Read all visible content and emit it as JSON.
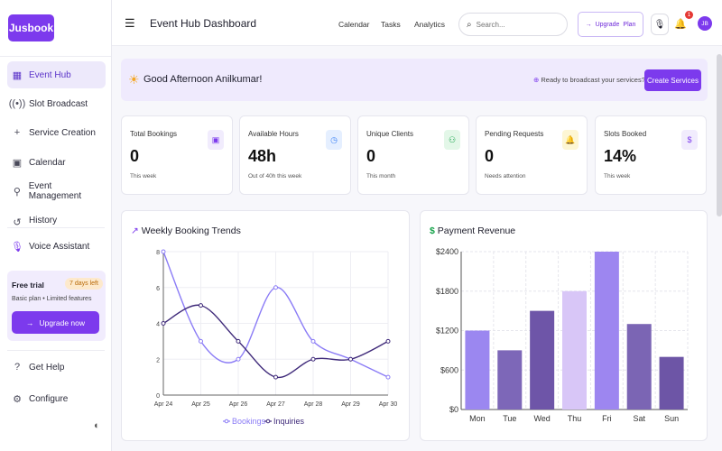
{
  "brand": {
    "name": "Jusbook"
  },
  "sidebar": {
    "items": [
      {
        "label": "Event Hub",
        "icon": "grid-icon"
      },
      {
        "label": "Slot Broadcast",
        "icon": "broadcast-icon"
      },
      {
        "label": "Service Creation",
        "icon": "plus-icon"
      },
      {
        "label": "Calendar",
        "icon": "calendar-icon"
      },
      {
        "label": "Event Management",
        "icon": "user-icon"
      },
      {
        "label": "History",
        "icon": "history-icon"
      }
    ],
    "voice": "Voice Assistant",
    "trial": {
      "title": "Free trial",
      "badge": "7 days left",
      "sub": "Basic plan • Limited features",
      "button": "Upgrade now"
    },
    "bottom": [
      {
        "label": "Get Help",
        "icon": "help-icon"
      },
      {
        "label": "Configure",
        "icon": "gear-icon"
      }
    ]
  },
  "header": {
    "title": "Event Hub Dashboard",
    "links": [
      "Calendar",
      "Tasks",
      "Analytics"
    ],
    "search_placeholder": "Search...",
    "upgrade_label": "Upgrade",
    "upgrade_plan": "Plan",
    "notif_count": "1",
    "avatar": "JB"
  },
  "greeting": {
    "text": "Good Afternoon Anilkumar!",
    "ready": "Ready to broadcast your services?",
    "button": "Create Services"
  },
  "stats": [
    {
      "label": "Total Bookings",
      "value": "0",
      "sub": "This week",
      "icon": "calendar-icon",
      "color": "#7c3aed",
      "bg": "#f1ecfd"
    },
    {
      "label": "Available Hours",
      "value": "48h",
      "sub": "Out of 40h this week",
      "icon": "clock-icon",
      "color": "#3b82f6",
      "bg": "#e5efff"
    },
    {
      "label": "Unique Clients",
      "value": "0",
      "sub": "This month",
      "icon": "users-icon",
      "color": "#16a34a",
      "bg": "#e3f7e8"
    },
    {
      "label": "Pending Requests",
      "value": "0",
      "sub": "Needs attention",
      "icon": "bell-icon",
      "color": "#d4a10a",
      "bg": "#fdf6d4"
    },
    {
      "label": "Slots Booked",
      "value": "14%",
      "sub": "This week",
      "icon": "dollar-icon",
      "color": "#7c3aed",
      "bg": "#f1ecfd"
    }
  ],
  "chart_data": [
    {
      "type": "line",
      "title": "Weekly Booking Trends",
      "x": [
        "Apr 24",
        "Apr 25",
        "Apr 26",
        "Apr 27",
        "Apr 28",
        "Apr 29",
        "Apr 30"
      ],
      "ylim": [
        0,
        8
      ],
      "yticks": [
        "0",
        "2",
        "4",
        "6",
        "8"
      ],
      "series": [
        {
          "name": "Bookings",
          "values": [
            8,
            3,
            2,
            6,
            3,
            2,
            1
          ],
          "color": "#8b7cf6"
        },
        {
          "name": "Inquiries",
          "values": [
            4,
            5,
            3,
            1,
            2,
            2,
            3
          ],
          "color": "#3f2a7a"
        }
      ],
      "legend": "bottom"
    },
    {
      "type": "bar",
      "title": "Payment Revenue",
      "categories": [
        "Mon",
        "Tue",
        "Wed",
        "Thu",
        "Fri",
        "Sat",
        "Sun"
      ],
      "values": [
        1200,
        900,
        1500,
        1800,
        2400,
        1300,
        800
      ],
      "colors": [
        "#9b87f0",
        "#7d67b8",
        "#6e55a8",
        "#d8c6f7",
        "#9d86f0",
        "#7b65b4",
        "#6d55a6"
      ],
      "ylim": [
        0,
        2400
      ],
      "yticks": [
        "$0",
        "$600",
        "$1200",
        "$1800",
        "$2400"
      ]
    }
  ]
}
